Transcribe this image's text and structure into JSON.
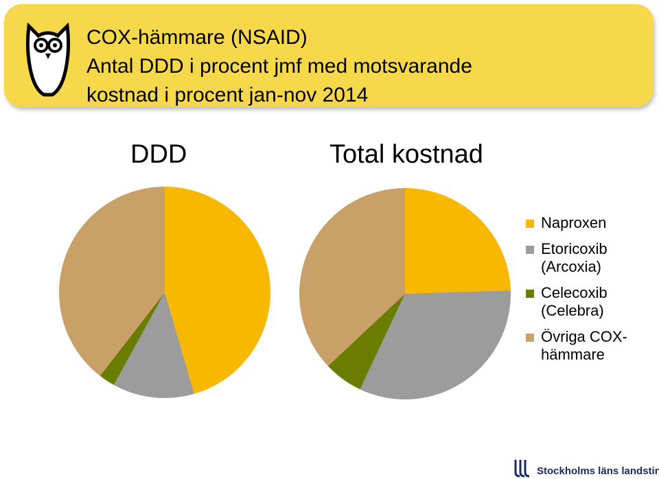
{
  "header": {
    "title_lines": [
      "COX-hämmare (NSAID)",
      "Antal DDD i procent jmf med motsvarande",
      "kostnad i procent jan-nov 2014"
    ],
    "banner_color": "#f7d84a"
  },
  "chart_data": [
    {
      "type": "pie",
      "title": "DDD",
      "categories": [
        "Naproxen",
        "Etoricoxib (Arcoxia)",
        "Celecoxib (Celebra)",
        "Övriga COX-hämmare"
      ],
      "values": [
        45.5,
        12.5,
        2.5,
        39.5
      ],
      "colors": [
        "#f9b800",
        "#9c9c9c",
        "#6b7d00",
        "#c9a067"
      ]
    },
    {
      "type": "pie",
      "title": "Total kostnad",
      "categories": [
        "Naproxen",
        "Etoricoxib (Arcoxia)",
        "Celecoxib (Celebra)",
        "Övriga COX-hämmare"
      ],
      "values": [
        24.5,
        32.5,
        6.0,
        37.0
      ],
      "colors": [
        "#f9b800",
        "#9c9c9c",
        "#6b7d00",
        "#c9a067"
      ]
    }
  ],
  "legend": {
    "placement": "right",
    "items": [
      {
        "label": "Naproxen",
        "color": "#f9b800"
      },
      {
        "label": "Etoricoxib (Arcoxia)",
        "color": "#9c9c9c"
      },
      {
        "label": "Celecoxib (Celebra)",
        "color": "#6b7d00"
      },
      {
        "label": "Övriga COX-hämmare",
        "color": "#c9a067"
      }
    ]
  },
  "footer": {
    "logo_text": "Stockholms läns landsting",
    "logo_icon": "sll-logo-icon"
  }
}
